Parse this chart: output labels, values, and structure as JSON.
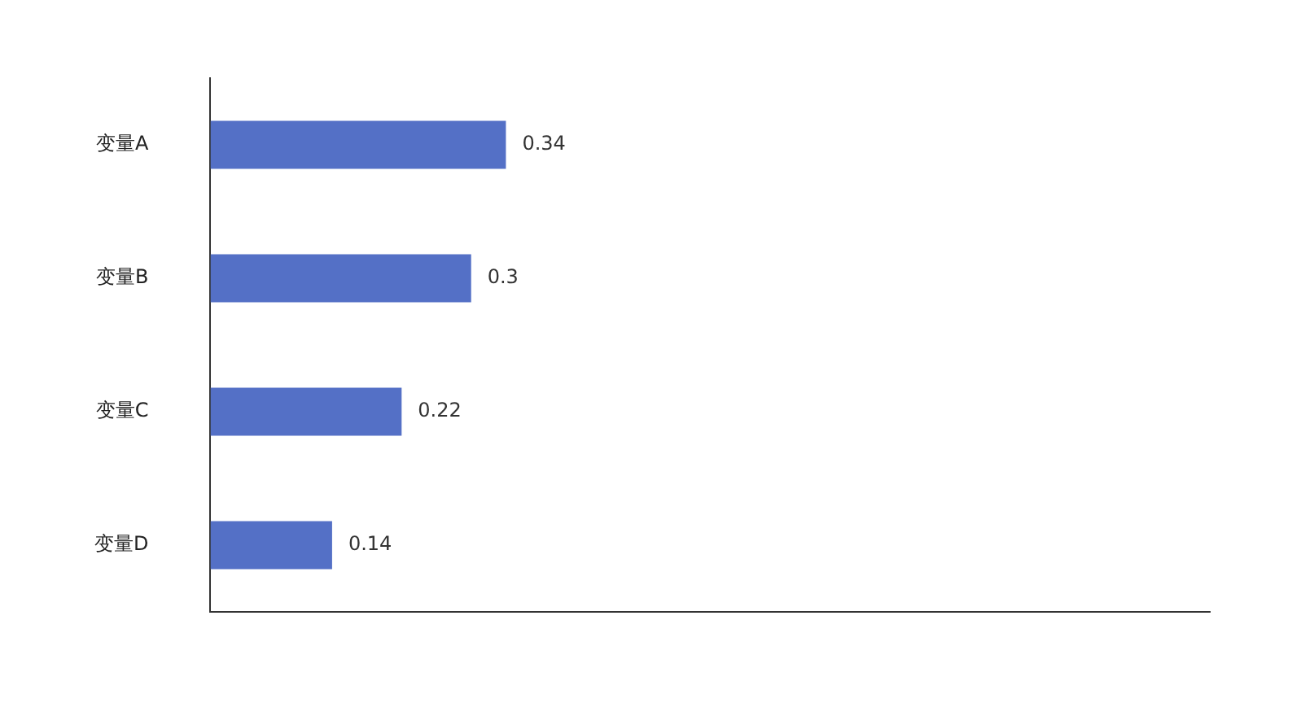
{
  "chart_data": {
    "type": "bar",
    "orientation": "horizontal",
    "categories": [
      "变量A",
      "变量B",
      "变量C",
      "变量D"
    ],
    "values": [
      0.34,
      0.3,
      0.22,
      0.14
    ],
    "color": "#5470c6",
    "xlim": [
      0,
      1.15
    ],
    "data_labels": true,
    "grid": false,
    "legend": false,
    "tick_labels": "y"
  }
}
